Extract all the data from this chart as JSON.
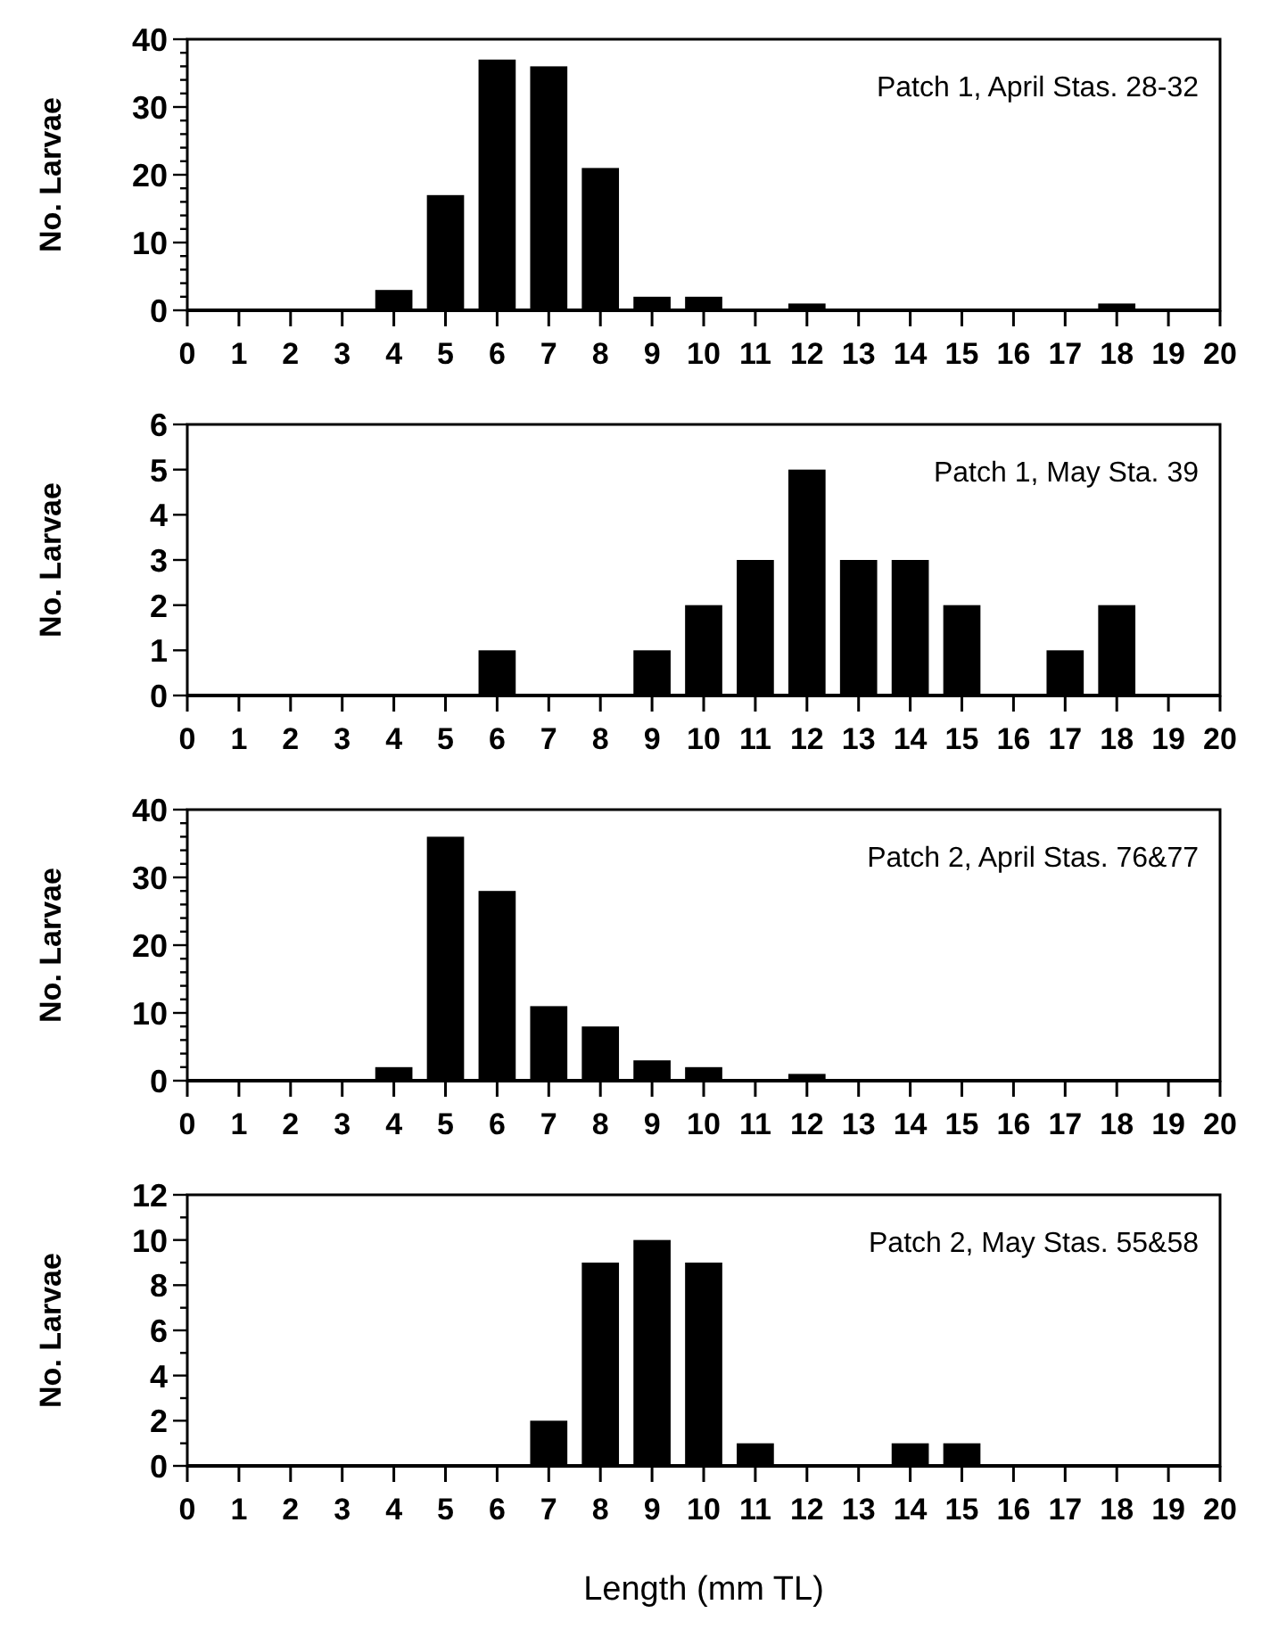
{
  "chart_data": [
    {
      "type": "bar",
      "ylabel": "No. Larvae",
      "annotations": [
        "Patch 1, April Stas. 28-32"
      ],
      "x": [
        4,
        5,
        6,
        7,
        8,
        9,
        10,
        12,
        18
      ],
      "values": [
        3,
        17,
        37,
        36,
        21,
        2,
        2,
        1,
        1
      ],
      "color": "#000000",
      "xlim": [
        0,
        20
      ],
      "xticks": [
        0,
        1,
        2,
        3,
        4,
        5,
        6,
        7,
        8,
        9,
        10,
        11,
        12,
        13,
        14,
        15,
        16,
        17,
        18,
        19,
        20
      ],
      "ylim": [
        0,
        40
      ],
      "yticks": [
        0,
        {
          "value": 2,
          "label": null
        },
        {
          "value": 4,
          "label": null
        },
        {
          "value": 6,
          "label": null
        },
        {
          "value": 8,
          "label": null
        },
        10,
        {
          "value": 12,
          "label": null
        },
        {
          "value": 14,
          "label": null
        },
        {
          "value": 16,
          "label": null
        },
        {
          "value": 18,
          "label": null
        },
        20,
        {
          "value": 22,
          "label": null
        },
        {
          "value": 24,
          "label": null
        },
        {
          "value": 26,
          "label": null
        },
        {
          "value": 28,
          "label": null
        },
        30,
        {
          "value": 32,
          "label": null
        },
        {
          "value": 34,
          "label": null
        },
        {
          "value": 36,
          "label": null
        },
        {
          "value": 38,
          "label": null
        },
        40
      ]
    },
    {
      "type": "bar",
      "ylabel": "No. Larvae",
      "annotations": [
        "Patch 1, May Sta. 39"
      ],
      "x": [
        6,
        9,
        10,
        11,
        12,
        13,
        14,
        15,
        17,
        18
      ],
      "values": [
        1,
        1,
        2,
        3,
        5,
        3,
        3,
        2,
        1,
        2
      ],
      "color": "#000000",
      "xlim": [
        0,
        20
      ],
      "xticks": [
        0,
        1,
        2,
        3,
        4,
        5,
        6,
        7,
        8,
        9,
        10,
        11,
        12,
        13,
        14,
        15,
        16,
        17,
        18,
        19,
        20
      ],
      "ylim": [
        0,
        6
      ],
      "yticks": [
        0,
        1,
        2,
        3,
        4,
        5,
        6
      ]
    },
    {
      "type": "bar",
      "ylabel": "No. Larvae",
      "annotations": [
        "Patch 2, April Stas. 76&77"
      ],
      "x": [
        4,
        5,
        6,
        7,
        8,
        9,
        10,
        12
      ],
      "values": [
        2,
        36,
        28,
        11,
        8,
        3,
        2,
        1
      ],
      "color": "#000000",
      "xlim": [
        0,
        20
      ],
      "xticks": [
        0,
        1,
        2,
        3,
        4,
        5,
        6,
        7,
        8,
        9,
        10,
        11,
        12,
        13,
        14,
        15,
        16,
        17,
        18,
        19,
        20
      ],
      "ylim": [
        0,
        40
      ],
      "yticks": [
        0,
        {
          "value": 2,
          "label": null
        },
        {
          "value": 4,
          "label": null
        },
        {
          "value": 6,
          "label": null
        },
        {
          "value": 8,
          "label": null
        },
        10,
        {
          "value": 12,
          "label": null
        },
        {
          "value": 14,
          "label": null
        },
        {
          "value": 16,
          "label": null
        },
        {
          "value": 18,
          "label": null
        },
        20,
        {
          "value": 22,
          "label": null
        },
        {
          "value": 24,
          "label": null
        },
        {
          "value": 26,
          "label": null
        },
        {
          "value": 28,
          "label": null
        },
        30,
        {
          "value": 32,
          "label": null
        },
        {
          "value": 34,
          "label": null
        },
        {
          "value": 36,
          "label": null
        },
        {
          "value": 38,
          "label": null
        },
        40
      ]
    },
    {
      "type": "bar",
      "ylabel": "No. Larvae",
      "xlabel": "Length (mm TL)",
      "annotations": [
        "Patch 2, May Stas. 55&58"
      ],
      "x": [
        7,
        8,
        9,
        10,
        11,
        14,
        15
      ],
      "values": [
        2,
        9,
        10,
        9,
        1,
        1,
        1
      ],
      "color": "#000000",
      "xlim": [
        0,
        20
      ],
      "xticks": [
        0,
        1,
        2,
        3,
        4,
        5,
        6,
        7,
        8,
        9,
        10,
        11,
        12,
        13,
        14,
        15,
        16,
        17,
        18,
        19,
        20
      ],
      "ylim": [
        0,
        12
      ],
      "yticks": [
        0,
        {
          "value": 1,
          "label": null
        },
        2,
        {
          "value": 3,
          "label": null
        },
        4,
        {
          "value": 5,
          "label": null
        },
        6,
        {
          "value": 7,
          "label": null
        },
        8,
        {
          "value": 9,
          "label": null
        },
        10,
        {
          "value": 11,
          "label": null
        },
        12
      ]
    }
  ]
}
